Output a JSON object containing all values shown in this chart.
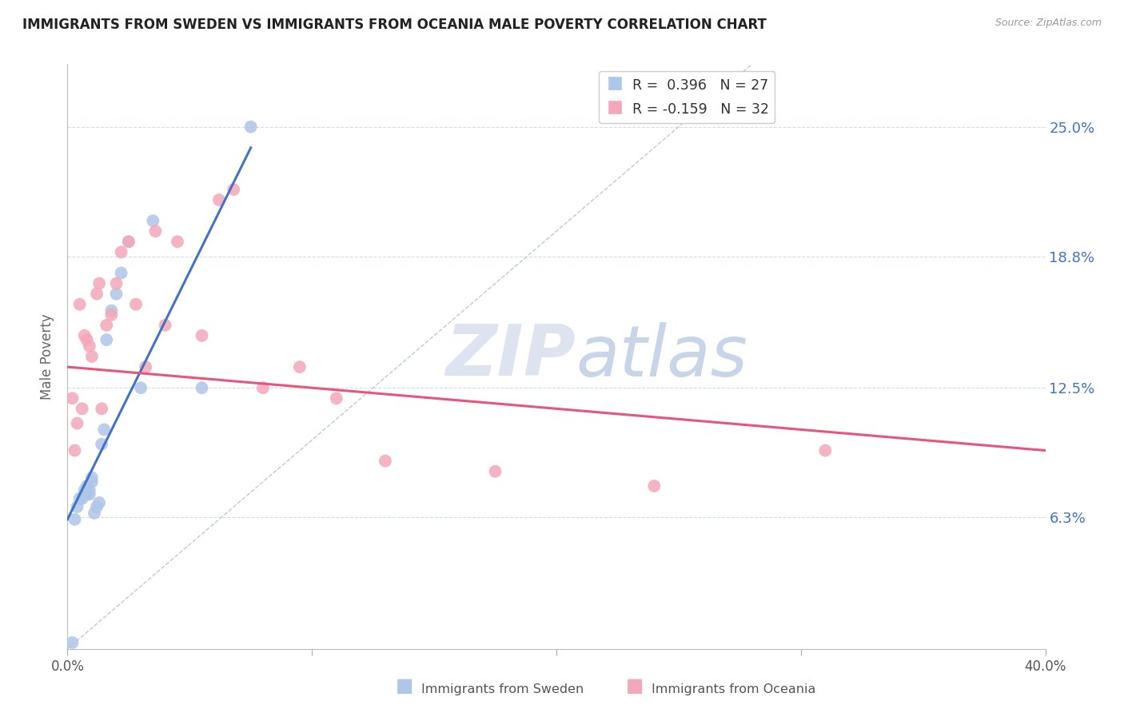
{
  "title": "IMMIGRANTS FROM SWEDEN VS IMMIGRANTS FROM OCEANIA MALE POVERTY CORRELATION CHART",
  "source": "Source: ZipAtlas.com",
  "ylabel": "Male Poverty",
  "ytick_labels": [
    "25.0%",
    "18.8%",
    "12.5%",
    "6.3%"
  ],
  "ytick_values": [
    0.25,
    0.188,
    0.125,
    0.063
  ],
  "xlim": [
    0.0,
    0.4
  ],
  "ylim": [
    0.0,
    0.28
  ],
  "sweden_color": "#aec6e8",
  "oceania_color": "#f4a7b9",
  "sweden_line_color": "#4472c4",
  "oceania_line_color": "#e8547a",
  "diagonal_color": "#c0c8d8",
  "sweden_points_x": [
    0.002,
    0.003,
    0.004,
    0.005,
    0.006,
    0.007,
    0.007,
    0.008,
    0.008,
    0.009,
    0.009,
    0.01,
    0.01,
    0.011,
    0.012,
    0.013,
    0.014,
    0.015,
    0.016,
    0.018,
    0.02,
    0.022,
    0.025,
    0.03,
    0.035,
    0.055,
    0.075
  ],
  "sweden_points_y": [
    0.003,
    0.062,
    0.068,
    0.072,
    0.072,
    0.074,
    0.076,
    0.074,
    0.078,
    0.074,
    0.076,
    0.08,
    0.082,
    0.065,
    0.068,
    0.07,
    0.098,
    0.105,
    0.148,
    0.162,
    0.17,
    0.18,
    0.195,
    0.125,
    0.205,
    0.125,
    0.25
  ],
  "oceania_points_x": [
    0.002,
    0.003,
    0.004,
    0.005,
    0.006,
    0.007,
    0.008,
    0.009,
    0.01,
    0.012,
    0.013,
    0.014,
    0.016,
    0.018,
    0.02,
    0.022,
    0.025,
    0.028,
    0.032,
    0.036,
    0.04,
    0.045,
    0.055,
    0.062,
    0.068,
    0.08,
    0.095,
    0.11,
    0.13,
    0.175,
    0.24,
    0.31
  ],
  "oceania_points_y": [
    0.12,
    0.095,
    0.108,
    0.165,
    0.115,
    0.15,
    0.148,
    0.145,
    0.14,
    0.17,
    0.175,
    0.115,
    0.155,
    0.16,
    0.175,
    0.19,
    0.195,
    0.165,
    0.135,
    0.2,
    0.155,
    0.195,
    0.15,
    0.215,
    0.22,
    0.125,
    0.135,
    0.12,
    0.09,
    0.085,
    0.078,
    0.095
  ],
  "background_color": "#ffffff",
  "grid_color": "#d4dce8",
  "watermark_zip": "ZIP",
  "watermark_atlas": "atlas",
  "watermark_color": "#d0d8e8"
}
